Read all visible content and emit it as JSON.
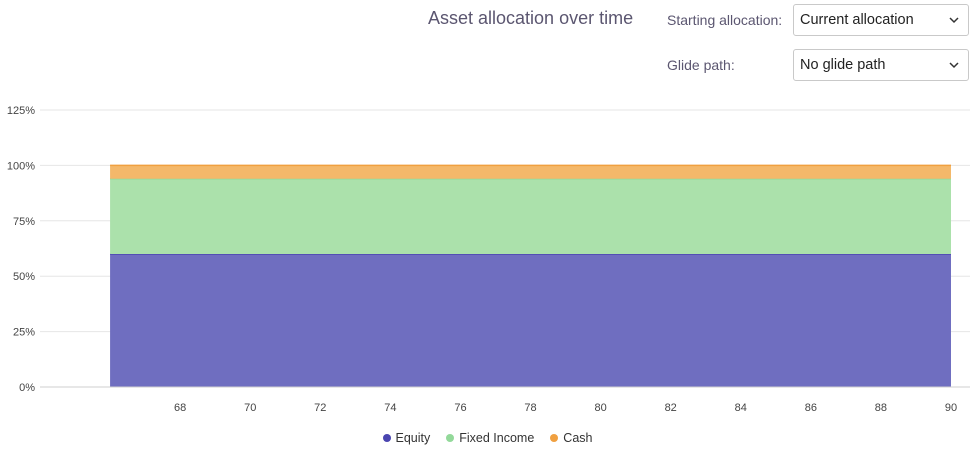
{
  "header": {
    "title": "Asset allocation over time",
    "starting_allocation": {
      "label": "Starting allocation:",
      "value": "Current allocation"
    },
    "glide_path": {
      "label": "Glide path:",
      "value": "No glide path"
    }
  },
  "chart_data": {
    "type": "area",
    "stacked": true,
    "title": "Asset allocation over time",
    "xlabel": "",
    "ylabel": "",
    "x": [
      66,
      68,
      70,
      72,
      74,
      76,
      78,
      80,
      82,
      84,
      86,
      88,
      90
    ],
    "x_ticks": [
      68,
      70,
      72,
      74,
      76,
      78,
      80,
      82,
      84,
      86,
      88,
      90
    ],
    "xlim": [
      64,
      90
    ],
    "y_ticks": [
      0,
      25,
      50,
      75,
      100,
      125
    ],
    "y_tick_labels": [
      "0%",
      "25%",
      "50%",
      "75%",
      "100%",
      "125%"
    ],
    "ylim": [
      0,
      125
    ],
    "grid": true,
    "legend_position": "bottom",
    "series": [
      {
        "name": "Equity",
        "color": "#4a45b0",
        "fill": "#6f6ec0",
        "values": [
          60,
          60,
          60,
          60,
          60,
          60,
          60,
          60,
          60,
          60,
          60,
          60,
          60
        ]
      },
      {
        "name": "Fixed Income",
        "color": "#93d99a",
        "fill": "#abe1ab",
        "values": [
          34,
          34,
          34,
          34,
          34,
          34,
          34,
          34,
          34,
          34,
          34,
          34,
          34
        ]
      },
      {
        "name": "Cash",
        "color": "#f0a040",
        "fill": "#f4b86a",
        "values": [
          6,
          6,
          6,
          6,
          6,
          6,
          6,
          6,
          6,
          6,
          6,
          6,
          6
        ]
      }
    ]
  }
}
